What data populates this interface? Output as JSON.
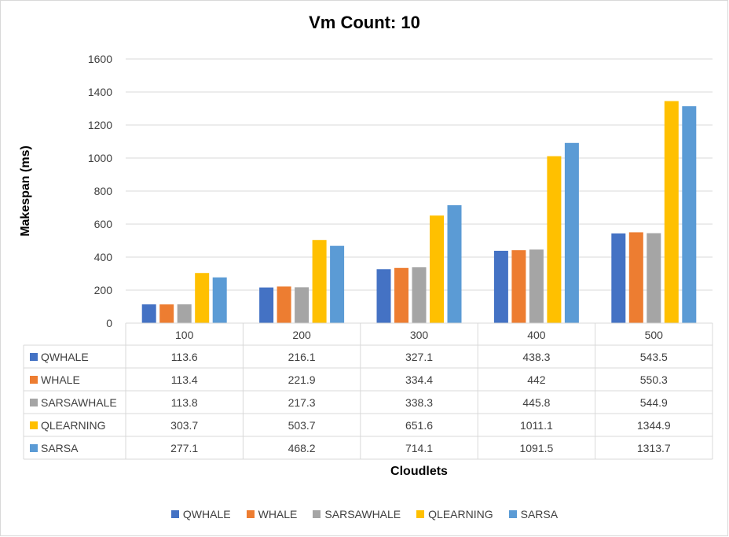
{
  "chart_data": {
    "type": "bar",
    "title": "Vm Count: 10",
    "xlabel": "Cloudlets",
    "ylabel": "Makespan (ms)",
    "categories": [
      "100",
      "200",
      "300",
      "400",
      "500"
    ],
    "ylim": [
      0,
      1600
    ],
    "yticks": [
      "0",
      "200",
      "400",
      "600",
      "800",
      "1000",
      "1200",
      "1400",
      "1600"
    ],
    "grid": true,
    "legend_position": "bottom",
    "data_table": true,
    "series": [
      {
        "name": "QWHALE",
        "color": "#4472c4",
        "values": [
          113.6,
          216.1,
          327.1,
          438.3,
          543.5
        ],
        "labels": [
          "113.6",
          "216.1",
          "327.1",
          "438.3",
          "543.5"
        ]
      },
      {
        "name": "WHALE",
        "color": "#ed7d31",
        "values": [
          113.4,
          221.9,
          334.4,
          442,
          550.3
        ],
        "labels": [
          "113.4",
          "221.9",
          "334.4",
          "442",
          "550.3"
        ]
      },
      {
        "name": "SARSAWHALE",
        "color": "#a5a5a5",
        "values": [
          113.8,
          217.3,
          338.3,
          445.8,
          544.9
        ],
        "labels": [
          "113.8",
          "217.3",
          "338.3",
          "445.8",
          "544.9"
        ]
      },
      {
        "name": "QLEARNING",
        "color": "#ffc000",
        "values": [
          303.7,
          503.7,
          651.6,
          1011.1,
          1344.9
        ],
        "labels": [
          "303.7",
          "503.7",
          "651.6",
          "1011.1",
          "1344.9"
        ]
      },
      {
        "name": "SARSA",
        "color": "#5b9bd5",
        "values": [
          277.1,
          468.2,
          714.1,
          1091.5,
          1313.7
        ],
        "labels": [
          "277.1",
          "468.2",
          "714.1",
          "1091.5",
          "1313.7"
        ]
      }
    ]
  }
}
